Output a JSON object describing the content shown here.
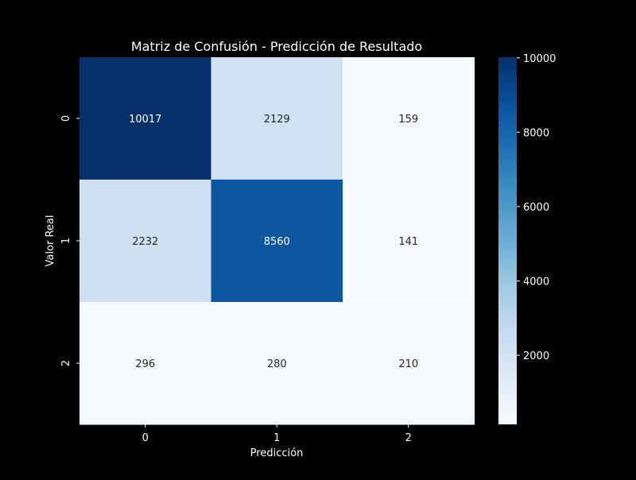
{
  "chart_data": {
    "type": "heatmap",
    "title": "Matriz de Confusión - Predicción de Resultado",
    "xlabel": "Predicción",
    "ylabel": "Valor Real",
    "x_categories": [
      "0",
      "1",
      "2"
    ],
    "y_categories": [
      "0",
      "1",
      "2"
    ],
    "values": [
      [
        10017,
        2129,
        159
      ],
      [
        2232,
        8560,
        141
      ],
      [
        296,
        280,
        210
      ]
    ],
    "colormap": "Blues",
    "colorbar": {
      "range": [
        141,
        10017
      ],
      "ticks": [
        2000,
        4000,
        6000,
        8000,
        10000
      ]
    },
    "colors": {
      "background": "#000000",
      "text": "#ffffff"
    }
  }
}
